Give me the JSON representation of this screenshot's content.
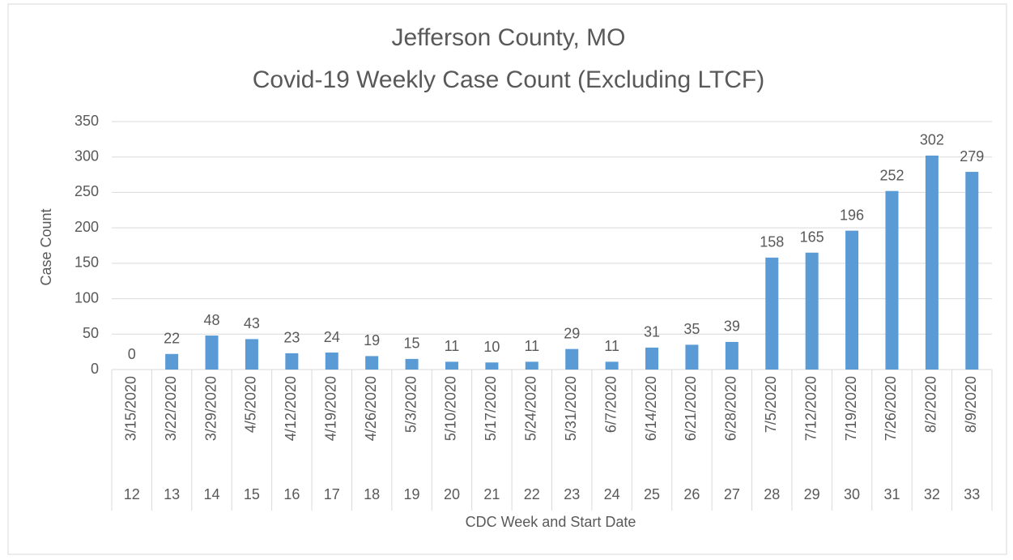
{
  "chart_data": {
    "type": "bar",
    "title": "Jefferson County, MO",
    "subtitle": "Covid-19 Weekly Case Count (Excluding LTCF)",
    "y_label": "Case Count",
    "x_label": "CDC Week and Start Date",
    "categories": [
      "3/15/2020",
      "3/22/2020",
      "3/29/2020",
      "4/5/2020",
      "4/12/2020",
      "4/19/2020",
      "4/26/2020",
      "5/3/2020",
      "5/10/2020",
      "5/17/2020",
      "5/24/2020",
      "5/31/2020",
      "6/7/2020",
      "6/14/2020",
      "6/21/2020",
      "6/28/2020",
      "7/5/2020",
      "7/12/2020",
      "7/19/2020",
      "7/26/2020",
      "8/2/2020",
      "8/9/2020"
    ],
    "weeks": [
      12,
      13,
      14,
      15,
      16,
      17,
      18,
      19,
      20,
      21,
      22,
      23,
      24,
      25,
      26,
      27,
      28,
      29,
      30,
      31,
      32,
      33
    ],
    "values": [
      0,
      22,
      48,
      43,
      23,
      24,
      19,
      15,
      11,
      10,
      11,
      29,
      11,
      31,
      35,
      39,
      158,
      165,
      196,
      252,
      302,
      279
    ],
    "color": "#5b9bd5",
    "ylim": [
      0,
      350
    ],
    "yticks": [
      0,
      50,
      100,
      150,
      200,
      250,
      300,
      350
    ],
    "grid": true
  }
}
